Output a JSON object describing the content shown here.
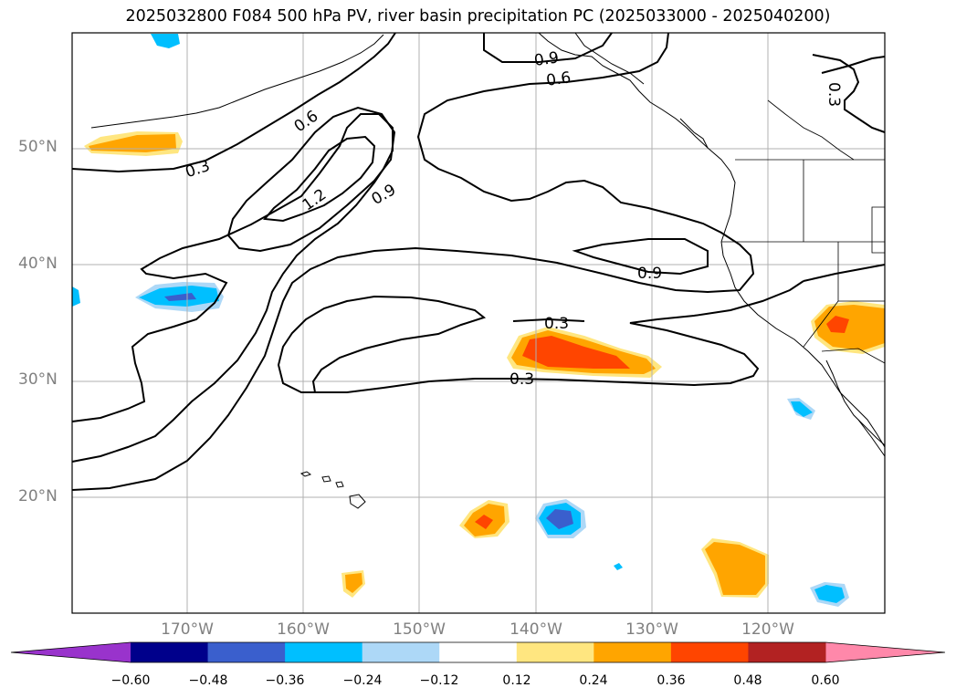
{
  "title": "2025032800 F084 500 hPa PV, river basin precipitation PC (2025033000 - 2025040200)",
  "lat_labels": [
    "50°N",
    "40°N",
    "30°N",
    "20°N"
  ],
  "lon_labels": [
    "170°W",
    "160°W",
    "150°W",
    "140°W",
    "130°W",
    "120°W"
  ],
  "contour_labels": [
    "0.9",
    "0.6",
    "0.3",
    "0.6",
    "0.3",
    "1.2",
    "0.9",
    "0.9",
    "0.3",
    "0.3"
  ],
  "colorbar": {
    "ticks": [
      "−0.60",
      "−0.48",
      "−0.36",
      "−0.24",
      "−0.12",
      "0.12",
      "0.24",
      "0.36",
      "0.48",
      "0.60"
    ],
    "colors": [
      "#9933cc",
      "#00008b",
      "#3a5fcd",
      "#00bfff",
      "#add8f7",
      "#ffffff",
      "#ffe680",
      "#ffa500",
      "#ff4500",
      "#b22222",
      "#ff88aa"
    ]
  },
  "fill_colors": {
    "light_yellow": "#ffe680",
    "orange": "#ffa500",
    "red_orange": "#ff4500",
    "light_blue": "#add8f7",
    "cyan": "#00bfff",
    "blue": "#3a5fcd"
  }
}
